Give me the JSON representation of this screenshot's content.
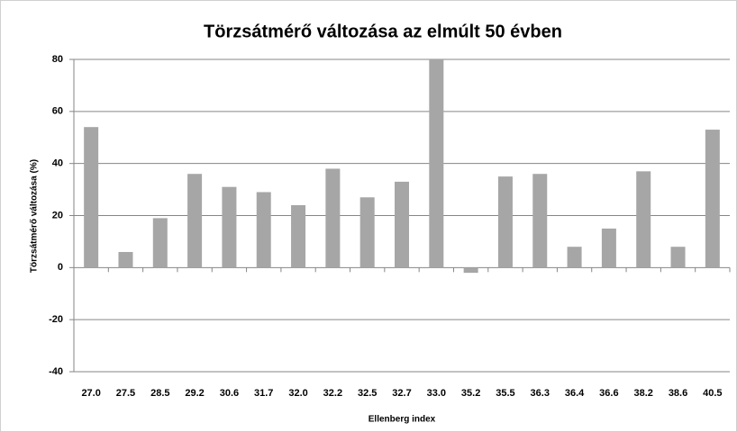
{
  "chart_data": {
    "type": "bar",
    "title": "Törzsátmérő változása az elmúlt 50 évben",
    "x_label": "Ellenberg index",
    "y_label": "Törzsátmérő változása  (%)",
    "categories": [
      "27.0",
      "27.5",
      "28.5",
      "29.2",
      "30.6",
      "31.7",
      "32.0",
      "32.2",
      "32.5",
      "32.7",
      "33.0",
      "35.2",
      "35.5",
      "36.3",
      "36.4",
      "36.6",
      "38.2",
      "38.6",
      "40.5"
    ],
    "values": [
      54,
      6,
      19,
      36,
      31,
      29,
      24,
      38,
      27,
      33,
      80,
      -2,
      35,
      36,
      8,
      15,
      37,
      8,
      53
    ],
    "color": "#a6a6a6",
    "ylim": [
      -40,
      80
    ],
    "yticks": [
      -40,
      -20,
      0,
      20,
      40,
      60,
      80
    ],
    "grid": true
  }
}
